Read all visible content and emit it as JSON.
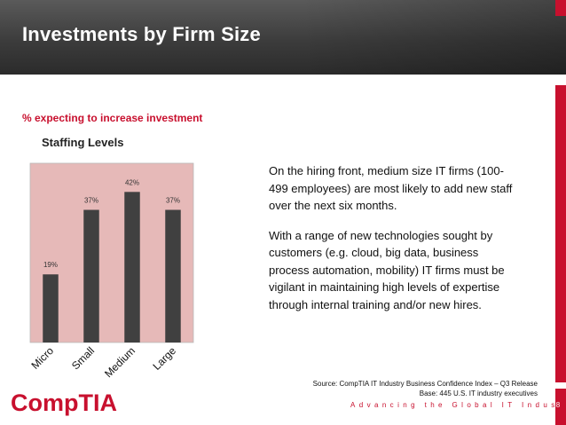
{
  "slide": {
    "title": "Investments by Firm Size",
    "subtitle": "% expecting to increase investment",
    "paragraphs": [
      "On the hiring front, medium size IT firms (100-499 employees) are most likely to add new staff over the next six months.",
      "With a range of new technologies sought by customers (e.g. cloud, big data, business process automation, mobility) IT firms must be vigilant in maintaining high levels of expertise through internal training and/or new hires."
    ],
    "source_line1": "Source: CompTIA IT Industry Business Confidence Index – Q3 Release",
    "source_line2": "Base: 445 U.S. IT industry executives",
    "tagline": "Advancing the Global IT Industry",
    "page_number": "8",
    "logo_text": "CompTIA"
  },
  "colors": {
    "accent_red": "#c8102e",
    "plot_background": "#e6b9b8",
    "bar_color": "#404040"
  },
  "chart_data": {
    "type": "bar",
    "title": "Staffing Levels",
    "categories": [
      "Micro",
      "Small",
      "Medium",
      "Large"
    ],
    "values": [
      19,
      37,
      42,
      37
    ],
    "value_labels": [
      "19%",
      "37%",
      "42%",
      "37%"
    ],
    "xlabel": "",
    "ylabel": "",
    "ylim": [
      0,
      50
    ],
    "grid": false,
    "legend": "none"
  }
}
